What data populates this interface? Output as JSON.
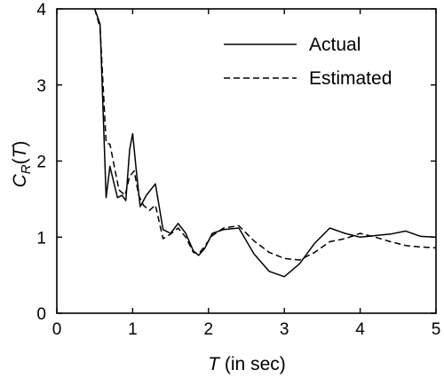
{
  "chart_data": {
    "type": "line",
    "xlabel_var": "T",
    "xlabel_rest": " (in sec)",
    "ylabel_base": "C",
    "ylabel_sub": "R",
    "ylabel_paren_open": "(",
    "ylabel_var": "T",
    "ylabel_paren_close": ")",
    "xlim": [
      0,
      5
    ],
    "ylim": [
      0,
      4
    ],
    "xticks": [
      0,
      1,
      2,
      3,
      4,
      5
    ],
    "yticks": [
      0,
      1,
      2,
      3,
      4
    ],
    "grid": false,
    "legend_position": "top-right",
    "series": [
      {
        "name": "Actual",
        "style": "solid",
        "color": "#000000",
        "x": [
          0.5,
          0.57,
          0.65,
          0.7,
          0.75,
          0.8,
          0.86,
          0.91,
          0.96,
          1.0,
          1.05,
          1.1,
          1.18,
          1.3,
          1.4,
          1.5,
          1.6,
          1.7,
          1.8,
          1.87,
          1.95,
          2.05,
          2.2,
          2.4,
          2.6,
          2.8,
          3.0,
          3.2,
          3.4,
          3.6,
          3.8,
          4.0,
          4.2,
          4.4,
          4.6,
          4.8,
          5.0
        ],
        "y": [
          4.0,
          3.8,
          1.52,
          1.93,
          1.72,
          1.52,
          1.55,
          1.48,
          2.15,
          2.36,
          1.85,
          1.4,
          1.55,
          1.7,
          1.1,
          1.05,
          1.18,
          1.05,
          0.82,
          0.76,
          0.85,
          1.05,
          1.1,
          1.12,
          0.78,
          0.55,
          0.48,
          0.65,
          0.92,
          1.12,
          1.05,
          1.0,
          1.02,
          1.04,
          1.08,
          1.01,
          1.0
        ]
      },
      {
        "name": "Estimated",
        "style": "dashed",
        "color": "#000000",
        "x": [
          0.5,
          0.57,
          0.65,
          0.7,
          0.76,
          0.82,
          0.9,
          0.96,
          1.02,
          1.08,
          1.14,
          1.22,
          1.3,
          1.4,
          1.5,
          1.6,
          1.7,
          1.8,
          1.87,
          1.95,
          2.05,
          2.2,
          2.4,
          2.6,
          2.8,
          3.0,
          3.2,
          3.4,
          3.6,
          3.8,
          4.0,
          4.2,
          4.4,
          4.6,
          4.8,
          5.0
        ],
        "y": [
          4.0,
          3.75,
          2.24,
          2.22,
          1.92,
          1.62,
          1.55,
          1.8,
          1.87,
          1.55,
          1.42,
          1.35,
          1.42,
          0.98,
          1.04,
          1.12,
          1.0,
          0.8,
          0.78,
          0.88,
          1.02,
          1.12,
          1.15,
          0.95,
          0.8,
          0.72,
          0.7,
          0.8,
          0.94,
          0.98,
          1.05,
          1.0,
          0.94,
          0.89,
          0.87,
          0.86
        ]
      }
    ]
  }
}
